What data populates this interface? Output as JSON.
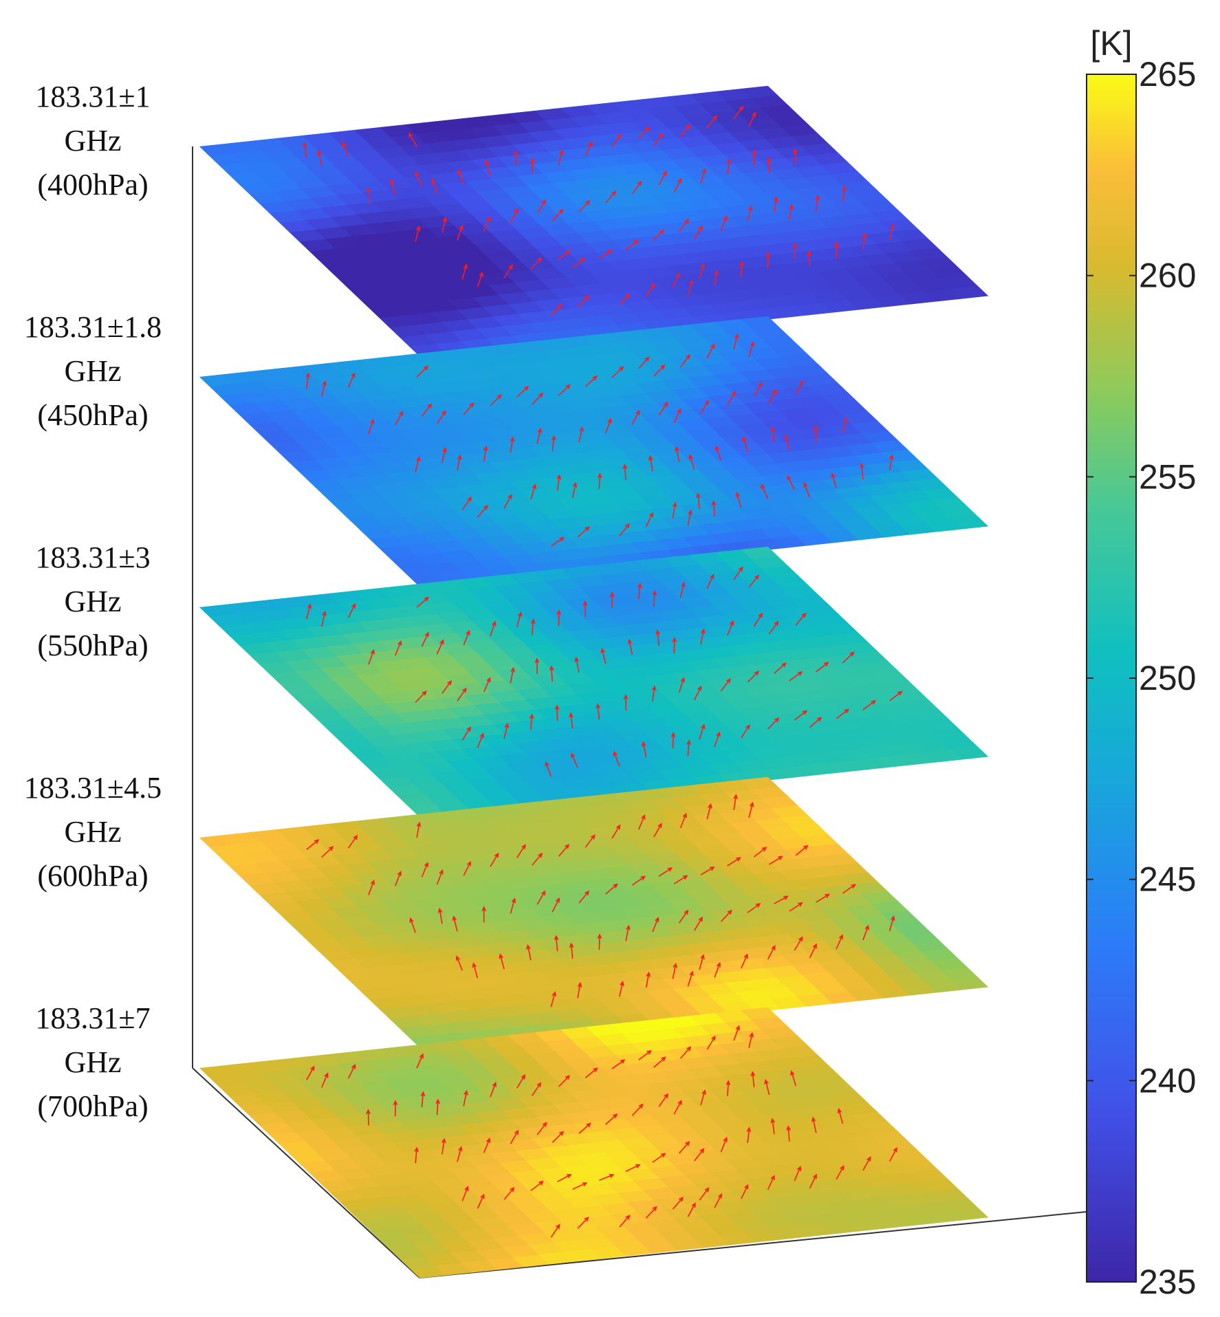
{
  "chart_data": {
    "type": "heatmap",
    "title": "",
    "colorbar": {
      "unit": "[K]",
      "range": [
        235,
        265
      ],
      "ticks": [
        235,
        240,
        245,
        250,
        255,
        260,
        265
      ],
      "colormap": "parula"
    },
    "layers": [
      {
        "label_lines": [
          "183.31±1",
          "GHz",
          "(400hPa)"
        ],
        "mean_value": 239,
        "variation": 5.5
      },
      {
        "label_lines": [
          "183.31±1.8",
          "GHz",
          "(450hPa)"
        ],
        "mean_value": 245,
        "variation": 5.5
      },
      {
        "label_lines": [
          "183.31±3",
          "GHz",
          "(550hPa)"
        ],
        "mean_value": 251,
        "variation": 5.0
      },
      {
        "label_lines": [
          "183.31±4.5",
          "GHz",
          "(600hPa)"
        ],
        "mean_value": 259.5,
        "variation": 4.0
      },
      {
        "label_lines": [
          "183.31±7",
          "GHz",
          "(700hPa)"
        ],
        "mean_value": 261.5,
        "variation": 3.5
      }
    ],
    "overlay": "wind vectors",
    "overlay_color": "#ff1a1a"
  }
}
